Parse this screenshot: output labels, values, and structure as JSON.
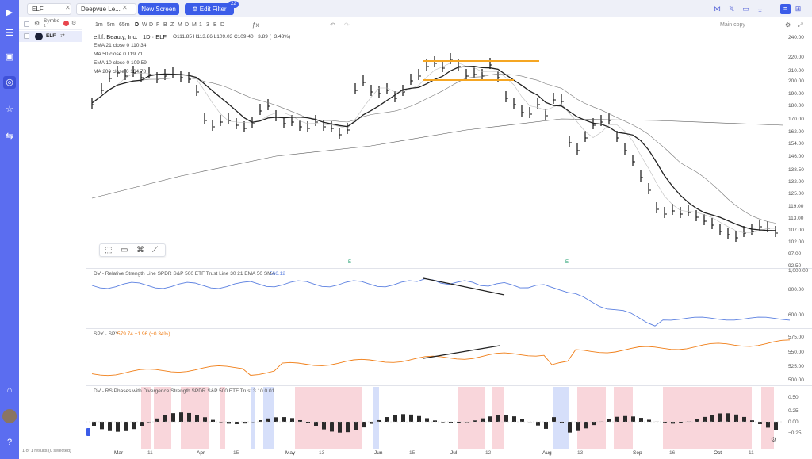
{
  "topbar": {
    "search_value": "ELF",
    "screen_name": "Deepvue Le...",
    "new_screen_label": "New Screen",
    "edit_filter_label": "Edit Filter",
    "edit_filter_badge": "22"
  },
  "watchlist": {
    "column_label": "Symbo",
    "column_sub": "1",
    "row_symbol": "ELF",
    "footer": "1 of 1 results (0 selected)"
  },
  "toolbar": {
    "timeframes": [
      "1m",
      "5m",
      "65m",
      "D",
      "W",
      "D",
      "F",
      "B",
      "Z",
      "M",
      "D",
      "M",
      "1",
      "3",
      "B",
      "D"
    ],
    "layout_name": "Main copy"
  },
  "legend": {
    "title": "e.l.f. Beauty, Inc. · 1D · ELF",
    "ohlc": "O111.85  H113.86  L109.03  C109.40  −3.89 (−3.43%)",
    "ema21": "EMA 21 close 0  110.34",
    "ma50": "MA 50 close 0  119.71",
    "ema10": "EMA 10 close 0  109.59",
    "ma200": "MA 200 close 0  164.78"
  },
  "price_axis": [
    "240.00",
    "220.00",
    "210.00",
    "200.00",
    "190.00",
    "180.00",
    "170.00",
    "162.00",
    "154.00",
    "146.00",
    "138.50",
    "132.00",
    "125.00",
    "119.00",
    "113.00",
    "107.00",
    "102.00",
    "97.00",
    "92.50"
  ],
  "rs_pane": {
    "title": "DV - Relative Strength Line  SPDR S&P 500 ETF Trust Line 30 21 EMA 50 SMA",
    "value": "566.12",
    "axis": [
      "1,000.00",
      "800.00",
      "600.00"
    ]
  },
  "spy_pane": {
    "title": "SPY · SPY",
    "value": "579.74  −1.96 (−0.34%)",
    "axis": [
      "575.00",
      "550.00",
      "525.00",
      "500.00"
    ]
  },
  "div_pane": {
    "title": "DV - RS Phases with Divergence Strength  SPDR S&P 500 ETF Trust 3 10  0.01",
    "axis": [
      "0.50",
      "0.25",
      "0.00",
      "−0.25"
    ]
  },
  "x_axis": [
    "Mar",
    "11",
    "Apr",
    "15",
    "May",
    "13",
    "Jun",
    "15",
    "Jul",
    "12",
    "Aug",
    "13",
    "Sep",
    "16",
    "Oct",
    "11"
  ],
  "earnings_marker": "E",
  "colors": {
    "nav": "#5b6df0",
    "accent": "#3b5ce8",
    "rs_line": "#5a7fe0",
    "spy_line": "#f07e17",
    "trendline": "#f5a623",
    "phase_red": "#f9d6db",
    "phase_blue": "#d6dffa"
  }
}
